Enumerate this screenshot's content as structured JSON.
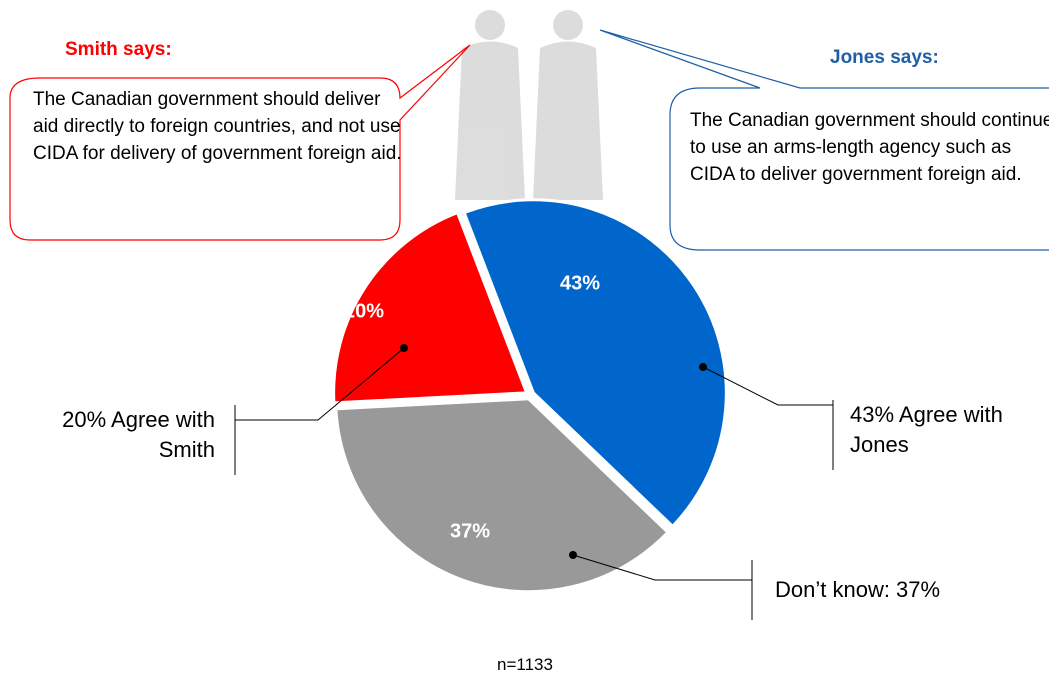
{
  "chart_data": {
    "type": "pie",
    "categories": [
      "43% Agree with Jones",
      "Don’t know: 37%",
      "20% Agree with Smith"
    ],
    "values": [
      43,
      37,
      20
    ],
    "value_labels": [
      "43%",
      "37%",
      "20%"
    ],
    "colors": [
      "#0066cc",
      "#999999",
      "#ff0000"
    ],
    "annotations": [
      {
        "title": "Smith says:",
        "text": "The Canadian government should deliver aid directly to foreign countries, and not use CIDA for delivery of government foreign aid.",
        "color": "#ff0000"
      },
      {
        "title": "Jones says:",
        "text": "The Canadian government should continue to use an arms-length agency such as CIDA to deliver government foreign aid.",
        "color": "#1f5fa8"
      }
    ],
    "footnote": "n=1133"
  }
}
